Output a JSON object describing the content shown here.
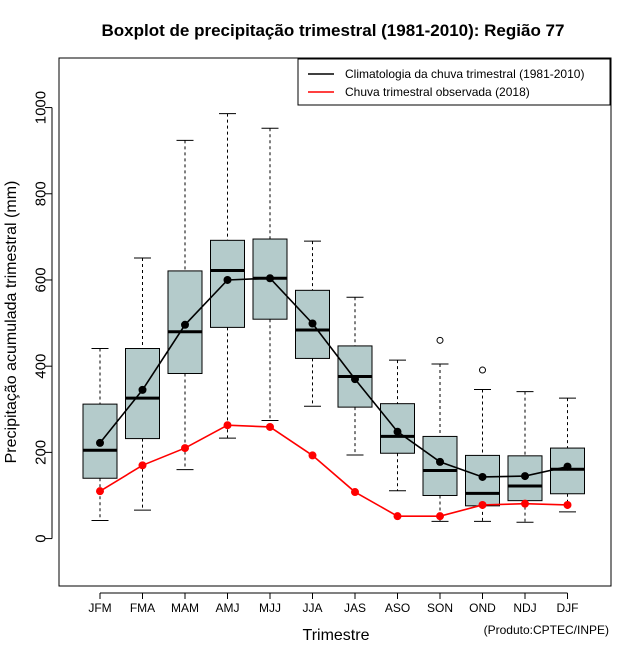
{
  "chart_data": {
    "type": "boxplot",
    "title": "Boxplot de precipitação trimestral (1981-2010): Região 77",
    "xlabel": "Trimestre",
    "ylabel": "Precipitação acumulada trimestral (mm)",
    "ylim": [
      -110,
      1115
    ],
    "yticks": [
      0,
      200,
      400,
      600,
      800,
      1000
    ],
    "categories": [
      "JFM",
      "FMA",
      "MAM",
      "AMJ",
      "MJJ",
      "JJA",
      "JAS",
      "ASO",
      "SON",
      "OND",
      "NDJ",
      "DJF"
    ],
    "boxes": [
      {
        "whisker_low": 42,
        "q1": 140,
        "median": 205,
        "q3": 312,
        "whisker_high": 441,
        "outliers": []
      },
      {
        "whisker_low": 66,
        "q1": 232,
        "median": 326,
        "q3": 441,
        "whisker_high": 651,
        "outliers": []
      },
      {
        "whisker_low": 160,
        "q1": 383,
        "median": 480,
        "q3": 621,
        "whisker_high": 924,
        "outliers": []
      },
      {
        "whisker_low": 233,
        "q1": 490,
        "median": 622,
        "q3": 692,
        "whisker_high": 986,
        "outliers": []
      },
      {
        "whisker_low": 274,
        "q1": 509,
        "median": 604,
        "q3": 695,
        "whisker_high": 952,
        "outliers": []
      },
      {
        "whisker_low": 307,
        "q1": 418,
        "median": 484,
        "q3": 576,
        "whisker_high": 690,
        "outliers": []
      },
      {
        "whisker_low": 194,
        "q1": 305,
        "median": 376,
        "q3": 447,
        "whisker_high": 560,
        "outliers": []
      },
      {
        "whisker_low": 111,
        "q1": 198,
        "median": 237,
        "q3": 313,
        "whisker_high": 414,
        "outliers": []
      },
      {
        "whisker_low": 40,
        "q1": 100,
        "median": 158,
        "q3": 237,
        "whisker_high": 405,
        "outliers": [
          460
        ]
      },
      {
        "whisker_low": 40,
        "q1": 76,
        "median": 105,
        "q3": 193,
        "whisker_high": 346,
        "outliers": [
          391
        ]
      },
      {
        "whisker_low": 38,
        "q1": 88,
        "median": 122,
        "q3": 192,
        "whisker_high": 341,
        "outliers": []
      },
      {
        "whisker_low": 62,
        "q1": 104,
        "median": 161,
        "q3": 210,
        "whisker_high": 326,
        "outliers": []
      }
    ],
    "series": [
      {
        "name": "Climatologia da chuva trimestral (1981-2010)",
        "color": "#000000",
        "values": [
          222,
          345,
          496,
          600,
          604,
          499,
          370,
          248,
          178,
          143,
          145,
          167
        ]
      },
      {
        "name": "Chuva trimestral observada (2018)",
        "color": "#ff0000",
        "values": [
          110,
          170,
          210,
          263,
          259,
          193,
          108,
          52,
          52,
          78,
          81,
          78
        ]
      }
    ],
    "box_fill": "#b4cbcb",
    "legend_position": "top-right",
    "credit": "(Produto:CPTEC/INPE)"
  }
}
